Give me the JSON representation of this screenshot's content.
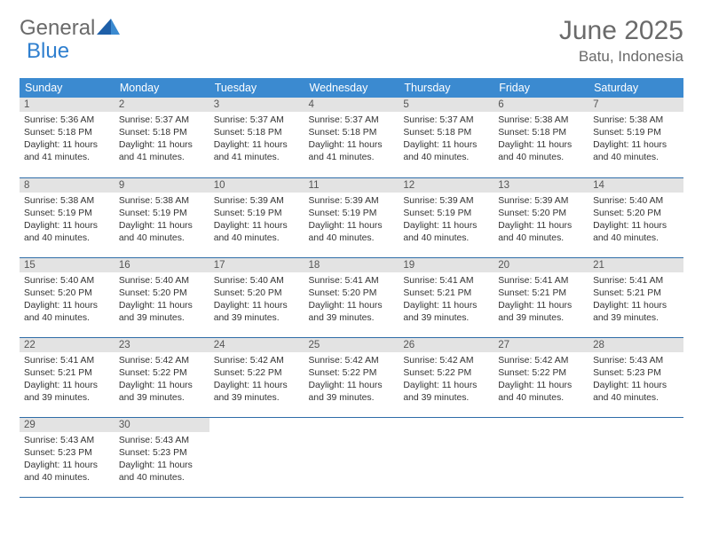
{
  "logo": {
    "text1": "General",
    "text2": "Blue"
  },
  "header": {
    "month": "June 2025",
    "location": "Batu, Indonesia"
  },
  "columns": [
    "Sunday",
    "Monday",
    "Tuesday",
    "Wednesday",
    "Thursday",
    "Friday",
    "Saturday"
  ],
  "colors": {
    "header_bg": "#3b8ad0",
    "header_text": "#ffffff",
    "daynum_bg": "#e3e3e3",
    "border": "#2f6da8",
    "logo_general": "#6a6a6a",
    "logo_blue": "#2f7fcf"
  },
  "weeks": [
    [
      {
        "n": "1",
        "sr": "5:36 AM",
        "ss": "5:18 PM",
        "dl": "11 hours and 41 minutes."
      },
      {
        "n": "2",
        "sr": "5:37 AM",
        "ss": "5:18 PM",
        "dl": "11 hours and 41 minutes."
      },
      {
        "n": "3",
        "sr": "5:37 AM",
        "ss": "5:18 PM",
        "dl": "11 hours and 41 minutes."
      },
      {
        "n": "4",
        "sr": "5:37 AM",
        "ss": "5:18 PM",
        "dl": "11 hours and 41 minutes."
      },
      {
        "n": "5",
        "sr": "5:37 AM",
        "ss": "5:18 PM",
        "dl": "11 hours and 40 minutes."
      },
      {
        "n": "6",
        "sr": "5:38 AM",
        "ss": "5:18 PM",
        "dl": "11 hours and 40 minutes."
      },
      {
        "n": "7",
        "sr": "5:38 AM",
        "ss": "5:19 PM",
        "dl": "11 hours and 40 minutes."
      }
    ],
    [
      {
        "n": "8",
        "sr": "5:38 AM",
        "ss": "5:19 PM",
        "dl": "11 hours and 40 minutes."
      },
      {
        "n": "9",
        "sr": "5:38 AM",
        "ss": "5:19 PM",
        "dl": "11 hours and 40 minutes."
      },
      {
        "n": "10",
        "sr": "5:39 AM",
        "ss": "5:19 PM",
        "dl": "11 hours and 40 minutes."
      },
      {
        "n": "11",
        "sr": "5:39 AM",
        "ss": "5:19 PM",
        "dl": "11 hours and 40 minutes."
      },
      {
        "n": "12",
        "sr": "5:39 AM",
        "ss": "5:19 PM",
        "dl": "11 hours and 40 minutes."
      },
      {
        "n": "13",
        "sr": "5:39 AM",
        "ss": "5:20 PM",
        "dl": "11 hours and 40 minutes."
      },
      {
        "n": "14",
        "sr": "5:40 AM",
        "ss": "5:20 PM",
        "dl": "11 hours and 40 minutes."
      }
    ],
    [
      {
        "n": "15",
        "sr": "5:40 AM",
        "ss": "5:20 PM",
        "dl": "11 hours and 40 minutes."
      },
      {
        "n": "16",
        "sr": "5:40 AM",
        "ss": "5:20 PM",
        "dl": "11 hours and 39 minutes."
      },
      {
        "n": "17",
        "sr": "5:40 AM",
        "ss": "5:20 PM",
        "dl": "11 hours and 39 minutes."
      },
      {
        "n": "18",
        "sr": "5:41 AM",
        "ss": "5:20 PM",
        "dl": "11 hours and 39 minutes."
      },
      {
        "n": "19",
        "sr": "5:41 AM",
        "ss": "5:21 PM",
        "dl": "11 hours and 39 minutes."
      },
      {
        "n": "20",
        "sr": "5:41 AM",
        "ss": "5:21 PM",
        "dl": "11 hours and 39 minutes."
      },
      {
        "n": "21",
        "sr": "5:41 AM",
        "ss": "5:21 PM",
        "dl": "11 hours and 39 minutes."
      }
    ],
    [
      {
        "n": "22",
        "sr": "5:41 AM",
        "ss": "5:21 PM",
        "dl": "11 hours and 39 minutes."
      },
      {
        "n": "23",
        "sr": "5:42 AM",
        "ss": "5:22 PM",
        "dl": "11 hours and 39 minutes."
      },
      {
        "n": "24",
        "sr": "5:42 AM",
        "ss": "5:22 PM",
        "dl": "11 hours and 39 minutes."
      },
      {
        "n": "25",
        "sr": "5:42 AM",
        "ss": "5:22 PM",
        "dl": "11 hours and 39 minutes."
      },
      {
        "n": "26",
        "sr": "5:42 AM",
        "ss": "5:22 PM",
        "dl": "11 hours and 39 minutes."
      },
      {
        "n": "27",
        "sr": "5:42 AM",
        "ss": "5:22 PM",
        "dl": "11 hours and 40 minutes."
      },
      {
        "n": "28",
        "sr": "5:43 AM",
        "ss": "5:23 PM",
        "dl": "11 hours and 40 minutes."
      }
    ],
    [
      {
        "n": "29",
        "sr": "5:43 AM",
        "ss": "5:23 PM",
        "dl": "11 hours and 40 minutes."
      },
      {
        "n": "30",
        "sr": "5:43 AM",
        "ss": "5:23 PM",
        "dl": "11 hours and 40 minutes."
      },
      null,
      null,
      null,
      null,
      null
    ]
  ],
  "labels": {
    "sunrise": "Sunrise: ",
    "sunset": "Sunset: ",
    "daylight": "Daylight: "
  }
}
